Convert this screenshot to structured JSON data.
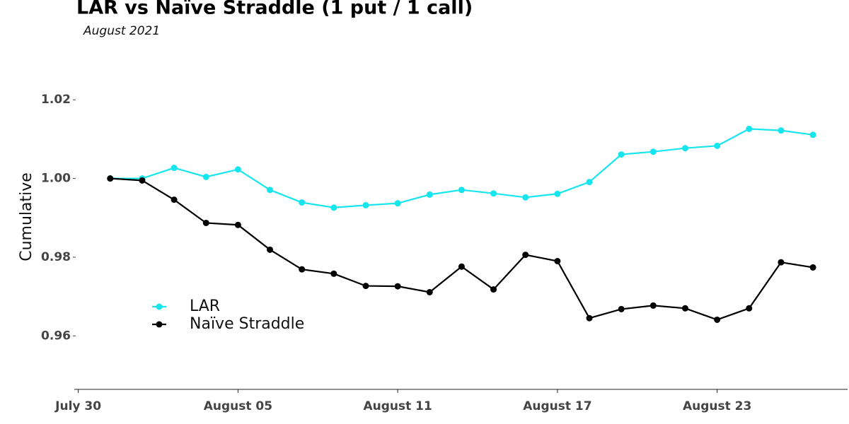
{
  "chart_data": {
    "type": "line",
    "title": "LAR vs Naïve Straddle (1 put / 1 call)",
    "subtitle": "August 2021",
    "y_label": "Cumulative",
    "x": [
      1.2,
      2.4,
      3.6,
      4.8,
      6.0,
      7.2,
      8.4,
      9.6,
      10.8,
      12.0,
      13.2,
      14.4,
      15.6,
      16.8,
      18.0,
      19.2,
      20.4,
      21.6,
      22.8,
      24.0,
      25.2,
      26.4,
      27.6
    ],
    "xlim": [
      -0.15,
      28.9
    ],
    "xticks": [
      {
        "value": 0,
        "label": "July 30"
      },
      {
        "value": 6,
        "label": "August 05"
      },
      {
        "value": 12,
        "label": "August 11"
      },
      {
        "value": 18,
        "label": "August 17"
      },
      {
        "value": 24,
        "label": "August 23"
      }
    ],
    "ylim": [
      0.9464,
      1.0274
    ],
    "yticks": [
      1.02,
      {
        "value": 1,
        "label": "1.00"
      },
      0.98,
      0.96
    ],
    "grid": false,
    "legend_position": "left",
    "series": [
      {
        "name": "LAR",
        "color": "#17e5ee",
        "values": [
          1.0,
          1.0,
          1.0027,
          1.0004,
          1.0023,
          0.9971,
          0.9939,
          0.9926,
          0.9932,
          0.9937,
          0.9959,
          0.9971,
          0.9962,
          0.9952,
          0.9961,
          0.9991,
          1.0061,
          1.0068,
          1.0077,
          1.0083,
          1.0126,
          1.0122,
          1.0111
        ]
      },
      {
        "name": "Naïve Straddle",
        "color": "#000000",
        "values": [
          1.0,
          0.9995,
          0.9946,
          0.9887,
          0.9882,
          0.9819,
          0.9769,
          0.9758,
          0.9727,
          0.9726,
          0.9711,
          0.9776,
          0.9718,
          0.9806,
          0.979,
          0.9645,
          0.9668,
          0.9677,
          0.967,
          0.9641,
          0.967,
          0.9787,
          0.9774
        ]
      }
    ]
  }
}
